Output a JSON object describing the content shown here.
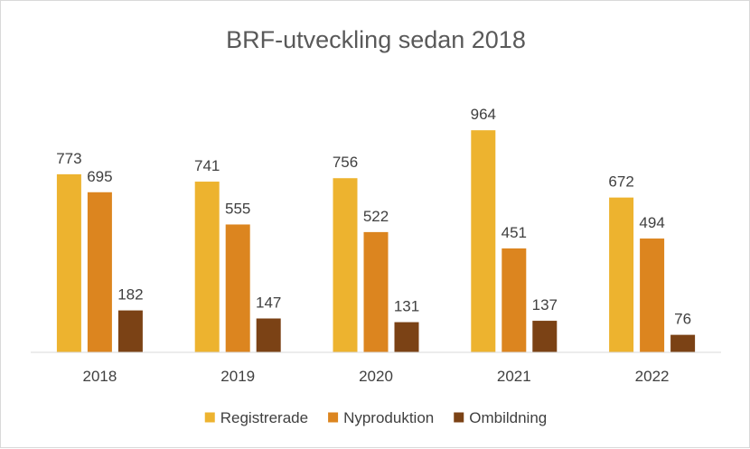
{
  "chart_data": {
    "type": "bar",
    "title": "BRF-utveckling sedan 2018",
    "xlabel": "",
    "ylabel": "",
    "categories": [
      "2018",
      "2019",
      "2020",
      "2021",
      "2022"
    ],
    "series": [
      {
        "name": "Registrerade",
        "color": "#EDB32F",
        "values": [
          773,
          741,
          756,
          964,
          672
        ]
      },
      {
        "name": "Nyproduktion",
        "color": "#DC851F",
        "values": [
          695,
          555,
          522,
          451,
          494
        ]
      },
      {
        "name": "Ombildning",
        "color": "#7B4215",
        "values": [
          182,
          147,
          131,
          137,
          76
        ]
      }
    ],
    "ylim": [
      0,
      1050
    ],
    "grid": false,
    "data_labels": true,
    "legend_position": "bottom"
  }
}
